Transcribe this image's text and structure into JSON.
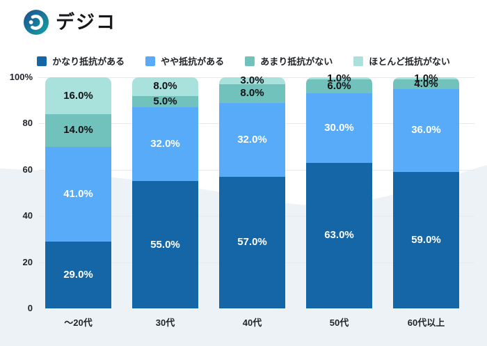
{
  "logo": {
    "text": "デジコ"
  },
  "colors": {
    "wave_background": "#EDF2F7",
    "gridline": "#E6EAEE",
    "logo_gradient_start": "#1E4C8F",
    "logo_gradient_end": "#14A4A4"
  },
  "chart_data": {
    "type": "bar",
    "stacked": true,
    "unit": "%",
    "ylim": [
      0,
      100
    ],
    "grid": true,
    "legend_position": "top",
    "categories": [
      "～20代",
      "30代",
      "40代",
      "50代",
      "60代以上"
    ],
    "series": [
      {
        "name": "かなり抵抗がある",
        "color": "#1566A6",
        "label_color": "#ffffff",
        "values": [
          29.0,
          55.0,
          57.0,
          63.0,
          59.0
        ]
      },
      {
        "name": "やや抵抗がある",
        "color": "#57ABF9",
        "label_color": "#ffffff",
        "values": [
          41.0,
          32.0,
          32.0,
          30.0,
          36.0
        ]
      },
      {
        "name": "あまり抵抗がない",
        "color": "#71C1BC",
        "label_color": "#101316",
        "values": [
          14.0,
          5.0,
          8.0,
          6.0,
          4.0
        ]
      },
      {
        "name": "ほとんど抵抗がない",
        "color": "#A9E1DC",
        "label_color": "#101316",
        "values": [
          16.0,
          8.0,
          3.0,
          1.0,
          1.0
        ]
      }
    ],
    "y_axis": {
      "ticks": [
        {
          "value": 100,
          "label": "100%"
        },
        {
          "value": 80,
          "label": "80"
        },
        {
          "value": 60,
          "label": "60"
        },
        {
          "value": 40,
          "label": "40"
        },
        {
          "value": 20,
          "label": "20"
        },
        {
          "value": 0,
          "label": "0"
        }
      ]
    },
    "value_label_format": "one_decimal_percent"
  }
}
